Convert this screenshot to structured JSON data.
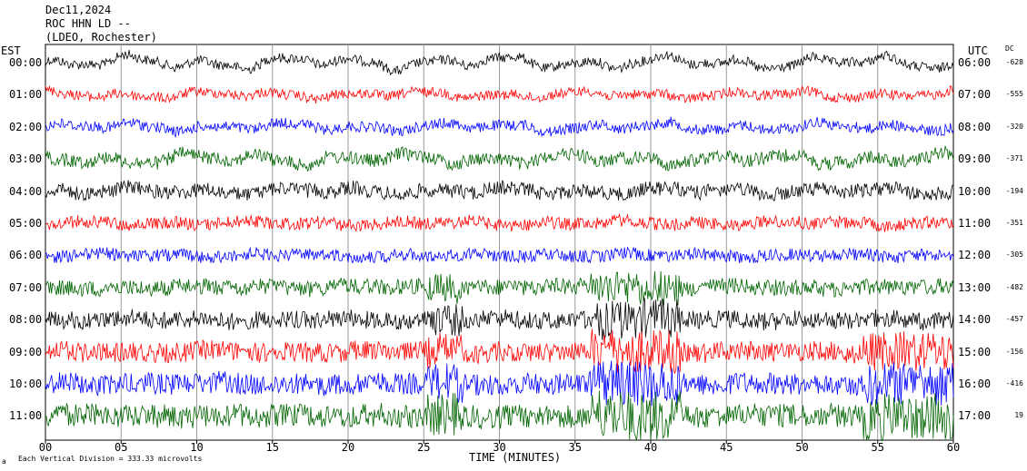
{
  "header": {
    "date": "Dec11,2024",
    "station": "ROC HHN LD --",
    "network": "(LDEO, Rochester)"
  },
  "left_zone_label": "EST",
  "right_zone_label": "UTC",
  "dc_label": "DC",
  "footer": {
    "xlabel": "TIME (MINUTES)",
    "scale_note": "Each Vertical Division = 333.33 microvolts",
    "corner_mark": "a"
  },
  "colors": {
    "cycle": [
      "#000000",
      "#ff0000",
      "#0000ff",
      "#006400"
    ],
    "gridline": "#999999"
  },
  "chart_data": {
    "type": "line",
    "title": "Dec11,2024 ROC HHN LD -- (LDEO, Rochester)",
    "xlabel": "TIME (MINUTES)",
    "ylabel": "",
    "xlim": [
      0,
      60
    ],
    "x_ticks": [
      "00",
      "05",
      "10",
      "15",
      "20",
      "25",
      "30",
      "35",
      "40",
      "45",
      "50",
      "55",
      "60"
    ],
    "x_tick_values": [
      0,
      5,
      10,
      15,
      20,
      25,
      30,
      35,
      40,
      45,
      50,
      55,
      60
    ],
    "grid": true,
    "legend": "none",
    "series": [
      {
        "est": "00:00",
        "utc": "06:00",
        "dc": "-628",
        "color": "#000000",
        "noise": 0.55,
        "wander": 1.1
      },
      {
        "est": "01:00",
        "utc": "07:00",
        "dc": "-555",
        "color": "#ff0000",
        "noise": 0.55,
        "wander": 0.6
      },
      {
        "est": "02:00",
        "utc": "08:00",
        "dc": "-320",
        "color": "#0000ff",
        "noise": 0.6,
        "wander": 0.7
      },
      {
        "est": "03:00",
        "utc": "09:00",
        "dc": "-371",
        "color": "#006400",
        "noise": 0.75,
        "wander": 0.9
      },
      {
        "est": "04:00",
        "utc": "10:00",
        "dc": "-194",
        "color": "#000000",
        "noise": 0.8,
        "wander": 0.6
      },
      {
        "est": "05:00",
        "utc": "11:00",
        "dc": "-351",
        "color": "#ff0000",
        "noise": 0.7,
        "wander": 0.4
      },
      {
        "est": "06:00",
        "utc": "12:00",
        "dc": "-305",
        "color": "#0000ff",
        "noise": 0.7,
        "wander": 0.3
      },
      {
        "est": "07:00",
        "utc": "13:00",
        "dc": "-482",
        "color": "#006400",
        "noise": 0.9,
        "wander": 0.3
      },
      {
        "est": "08:00",
        "utc": "14:00",
        "dc": "-457",
        "color": "#000000",
        "noise": 1.0,
        "wander": 0.3
      },
      {
        "est": "09:00",
        "utc": "15:00",
        "dc": "-156",
        "color": "#ff0000",
        "noise": 1.1,
        "wander": 0.3
      },
      {
        "est": "10:00",
        "utc": "16:00",
        "dc": "-416",
        "color": "#0000ff",
        "noise": 1.2,
        "wander": 0.3
      },
      {
        "est": "11:00",
        "utc": "17:00",
        "dc": "19",
        "color": "#006400",
        "noise": 1.3,
        "wander": 0.3
      }
    ]
  }
}
